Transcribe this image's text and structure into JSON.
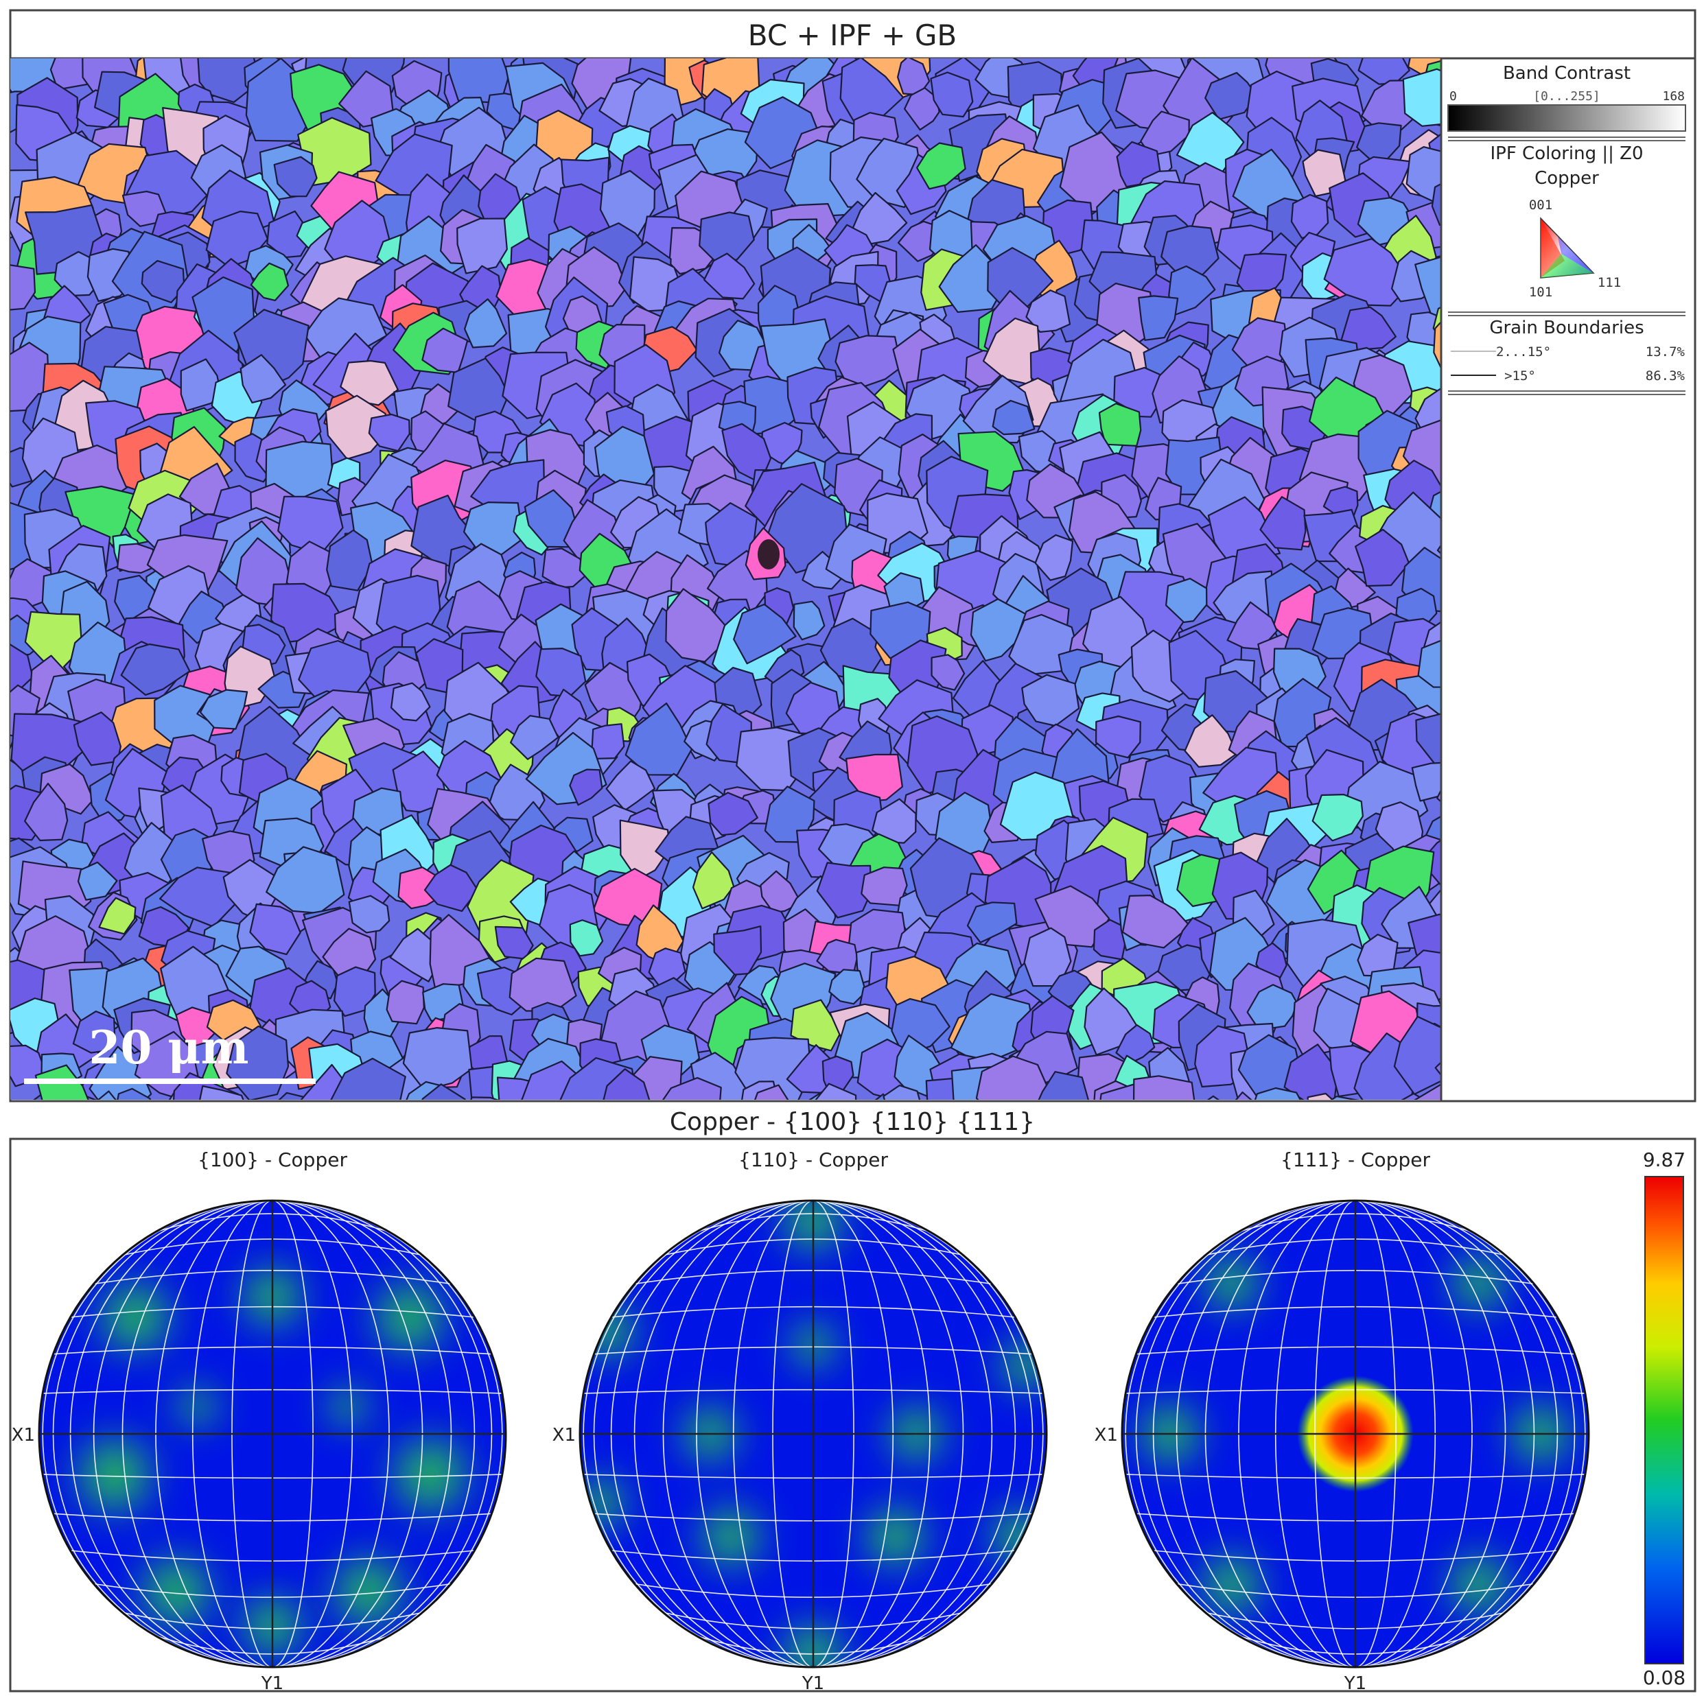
{
  "map_panel": {
    "title": "BC + IPF + GB",
    "scale_bar_label": "20 μm",
    "legend": {
      "band_contrast": {
        "title": "Band Contrast",
        "min": "0",
        "range": "[0...255]",
        "max": "168"
      },
      "ipf": {
        "title": "IPF Coloring || Z0",
        "phase": "Copper",
        "corners": {
          "top": "001",
          "bottom_left": "101",
          "bottom_right": "111"
        }
      },
      "grain_boundaries": {
        "title": "Grain Boundaries",
        "rows": [
          {
            "label": "2...15°",
            "fraction": "13.7%"
          },
          {
            "label": ">15°",
            "fraction": "86.3%"
          }
        ]
      }
    }
  },
  "pole_figure_panel": {
    "title": "Copper - {100} {110} {111}",
    "x_axis_label": "X1",
    "y_axis_label": "Y1",
    "figures": [
      {
        "label": "{100} - Copper"
      },
      {
        "label": "{110} - Copper"
      },
      {
        "label": "{111} - Copper"
      }
    ],
    "colorbar": {
      "max": "9.87",
      "min": "0.08"
    }
  },
  "colors": {
    "frame": "#444444",
    "pole_background": "#0014e6",
    "colorbar_stops": [
      "#0000dd",
      "#0066ee",
      "#00bbaa",
      "#22cc22",
      "#ccee00",
      "#ffcc00",
      "#ff5500",
      "#ee0000"
    ],
    "grain_palette": [
      "#6a6aeb",
      "#6c5ce6",
      "#7a6ff0",
      "#5f78e8",
      "#8a74ec",
      "#7d8df2",
      "#5d66dd",
      "#9a7ae8",
      "#6c9cf0",
      "#8c8cf4"
    ],
    "grain_accents": [
      "#44e06a",
      "#ff6a5e",
      "#ff66cc",
      "#66f0d0",
      "#ffb06a",
      "#7ae6ff",
      "#e8c0d8",
      "#b0f060"
    ]
  }
}
